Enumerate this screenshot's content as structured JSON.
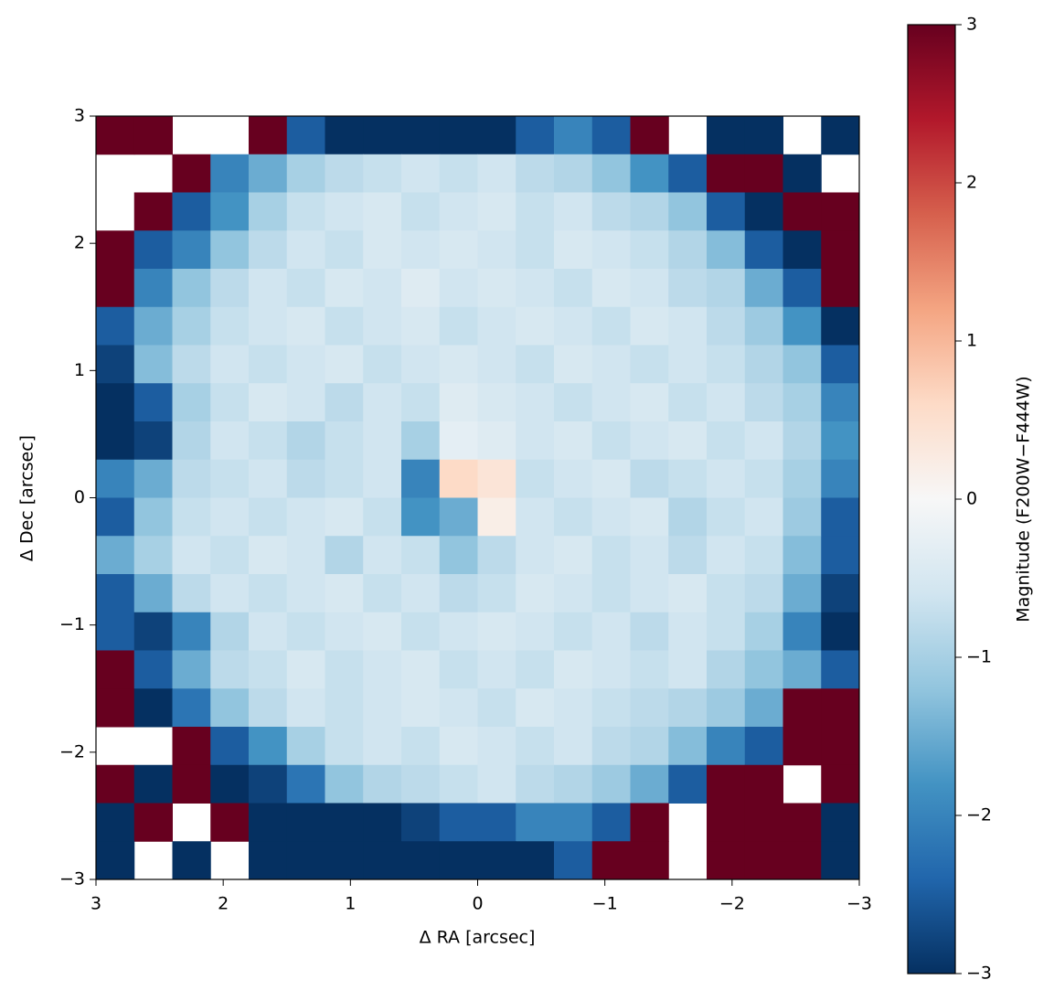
{
  "chart_data": {
    "type": "heatmap",
    "xlabel": "Δ RA [arcsec]",
    "ylabel": "Δ Dec [arcsec]",
    "xlim": [
      3,
      -3
    ],
    "ylim": [
      -3,
      3
    ],
    "xticks": [
      3,
      2,
      1,
      0,
      {
        "value": -1,
        "label": "−1"
      },
      {
        "value": -2,
        "label": "−2"
      },
      {
        "value": -3,
        "label": "−3"
      }
    ],
    "yticks": [
      {
        "value": -3,
        "label": "−3"
      },
      {
        "value": -2,
        "label": "−2"
      },
      {
        "value": -1,
        "label": "−1"
      },
      0,
      1,
      2,
      3
    ],
    "x": [
      2.85,
      2.55,
      2.25,
      1.95,
      1.65,
      1.35,
      1.05,
      0.75,
      0.45,
      0.15,
      -0.15,
      -0.45,
      -0.75,
      -1.05,
      -1.35,
      -1.65,
      -1.95,
      -2.25,
      -2.55,
      -2.85
    ],
    "y": [
      2.85,
      2.55,
      2.25,
      1.95,
      1.65,
      1.35,
      1.05,
      0.75,
      0.45,
      0.15,
      -0.15,
      -0.45,
      -0.75,
      -1.05,
      -1.35,
      -1.65,
      -1.95,
      -2.25,
      -2.55,
      -2.85
    ],
    "z": [
      [
        3,
        3,
        null,
        null,
        3,
        -2.5,
        -3,
        -3,
        -3,
        -3,
        -3,
        -2.5,
        -2,
        -2.5,
        3,
        null,
        -3,
        -3,
        null,
        -3
      ],
      [
        null,
        null,
        3,
        -2,
        -1.5,
        -1,
        -0.8,
        -0.7,
        -0.6,
        -0.7,
        -0.6,
        -0.8,
        -0.9,
        -1.2,
        -1.8,
        -2.5,
        3,
        3,
        -3,
        null
      ],
      [
        null,
        3,
        -2.5,
        -1.8,
        -1,
        -0.7,
        -0.6,
        -0.5,
        -0.7,
        -0.6,
        -0.5,
        -0.7,
        -0.6,
        -0.8,
        -0.9,
        -1.2,
        -2.5,
        -3,
        3,
        3
      ],
      [
        3,
        -2.5,
        -2,
        -1.2,
        -0.8,
        -0.6,
        -0.7,
        -0.5,
        -0.6,
        -0.5,
        -0.6,
        -0.7,
        -0.5,
        -0.6,
        -0.7,
        -0.9,
        -1.3,
        -2.5,
        -3,
        3
      ],
      [
        3,
        -2,
        -1.2,
        -0.8,
        -0.6,
        -0.7,
        -0.5,
        -0.6,
        -0.4,
        -0.6,
        -0.5,
        -0.6,
        -0.7,
        -0.5,
        -0.6,
        -0.8,
        -0.9,
        -1.5,
        -2.5,
        3
      ],
      [
        -2.5,
        -1.5,
        -1,
        -0.7,
        -0.6,
        -0.5,
        -0.7,
        -0.6,
        -0.5,
        -0.7,
        -0.6,
        -0.5,
        -0.6,
        -0.7,
        -0.5,
        -0.6,
        -0.8,
        -1.1,
        -1.8,
        -3
      ],
      [
        -2.8,
        -1.3,
        -0.8,
        -0.6,
        -0.7,
        -0.6,
        -0.5,
        -0.7,
        -0.6,
        -0.5,
        -0.6,
        -0.7,
        -0.5,
        -0.6,
        -0.7,
        -0.6,
        -0.7,
        -0.9,
        -1.2,
        -2.5
      ],
      [
        -3,
        -2.5,
        -1,
        -0.7,
        -0.5,
        -0.6,
        -0.8,
        -0.6,
        -0.7,
        -0.4,
        -0.5,
        -0.6,
        -0.7,
        -0.6,
        -0.5,
        -0.7,
        -0.6,
        -0.8,
        -1,
        -2
      ],
      [
        -3,
        -2.8,
        -0.9,
        -0.6,
        -0.7,
        -0.9,
        -0.7,
        -0.6,
        -1,
        -0.3,
        -0.4,
        -0.6,
        -0.5,
        -0.7,
        -0.6,
        -0.5,
        -0.7,
        -0.6,
        -0.9,
        -1.8
      ],
      [
        -2,
        -1.5,
        -0.8,
        -0.7,
        -0.6,
        -0.8,
        -0.7,
        -0.6,
        -2,
        0.6,
        0.4,
        -0.7,
        -0.6,
        -0.5,
        -0.8,
        -0.7,
        -0.6,
        -0.7,
        -1,
        -2
      ],
      [
        -2.5,
        -1.2,
        -0.7,
        -0.6,
        -0.7,
        -0.6,
        -0.5,
        -0.7,
        -1.8,
        -1.5,
        0.2,
        -0.6,
        -0.7,
        -0.6,
        -0.5,
        -0.9,
        -0.7,
        -0.6,
        -1.1,
        -2.5
      ],
      [
        -1.5,
        -1,
        -0.6,
        -0.7,
        -0.5,
        -0.6,
        -0.9,
        -0.6,
        -0.7,
        -1.2,
        -0.8,
        -0.6,
        -0.5,
        -0.7,
        -0.6,
        -0.8,
        -0.6,
        -0.7,
        -1.3,
        -2.5
      ],
      [
        -2.5,
        -1.5,
        -0.8,
        -0.6,
        -0.7,
        -0.6,
        -0.5,
        -0.7,
        -0.6,
        -0.8,
        -0.7,
        -0.5,
        -0.6,
        -0.7,
        -0.6,
        -0.5,
        -0.7,
        -0.8,
        -1.5,
        -2.8
      ],
      [
        -2.5,
        -2.8,
        -2,
        -0.9,
        -0.6,
        -0.7,
        -0.6,
        -0.5,
        -0.7,
        -0.6,
        -0.5,
        -0.6,
        -0.7,
        -0.6,
        -0.8,
        -0.6,
        -0.7,
        -1,
        -2,
        -3
      ],
      [
        3,
        -2.5,
        -1.5,
        -0.8,
        -0.7,
        -0.5,
        -0.7,
        -0.6,
        -0.5,
        -0.7,
        -0.6,
        -0.7,
        -0.5,
        -0.6,
        -0.7,
        -0.6,
        -0.9,
        -1.2,
        -1.5,
        -2.5
      ],
      [
        3,
        -3,
        -2.2,
        -1.2,
        -0.8,
        -0.6,
        -0.7,
        -0.6,
        -0.5,
        -0.6,
        -0.7,
        -0.5,
        -0.6,
        -0.7,
        -0.8,
        -0.9,
        -1.1,
        -1.5,
        3,
        3
      ],
      [
        null,
        null,
        3,
        -2.5,
        -1.8,
        -1,
        -0.7,
        -0.6,
        -0.7,
        -0.5,
        -0.6,
        -0.7,
        -0.6,
        -0.8,
        -0.9,
        -1.3,
        -2,
        -2.5,
        3,
        3
      ],
      [
        3,
        -3,
        3,
        -3,
        -2.8,
        -2.2,
        -1.2,
        -0.9,
        -0.8,
        -0.7,
        -0.6,
        -0.8,
        -0.9,
        -1.1,
        -1.5,
        -2.5,
        3,
        3,
        null,
        3
      ],
      [
        -3,
        3,
        null,
        3,
        -3,
        -3,
        -3,
        -3,
        -2.8,
        -2.5,
        -2.5,
        -2,
        -2,
        -2.5,
        3,
        null,
        3,
        3,
        3,
        -3
      ],
      [
        -3,
        null,
        -3,
        null,
        -3,
        -3,
        -3,
        -3,
        -3,
        -3,
        -3,
        -3,
        -2.5,
        3,
        3,
        null,
        3,
        3,
        3,
        -3
      ]
    ],
    "colorbar": {
      "label": "Magnitude (F200W−F444W)",
      "lim": [
        -3,
        3
      ],
      "ticks": [
        {
          "value": -3,
          "label": "−3"
        },
        {
          "value": -2,
          "label": "−2"
        },
        {
          "value": -1,
          "label": "−1"
        },
        0,
        1,
        2,
        3
      ],
      "colors": [
        "#053061",
        "#2166ac",
        "#4393c3",
        "#92c5de",
        "#d1e5f0",
        "#f7f7f7",
        "#fddbc7",
        "#f4a582",
        "#d6604d",
        "#b2182b",
        "#67001f"
      ]
    }
  }
}
